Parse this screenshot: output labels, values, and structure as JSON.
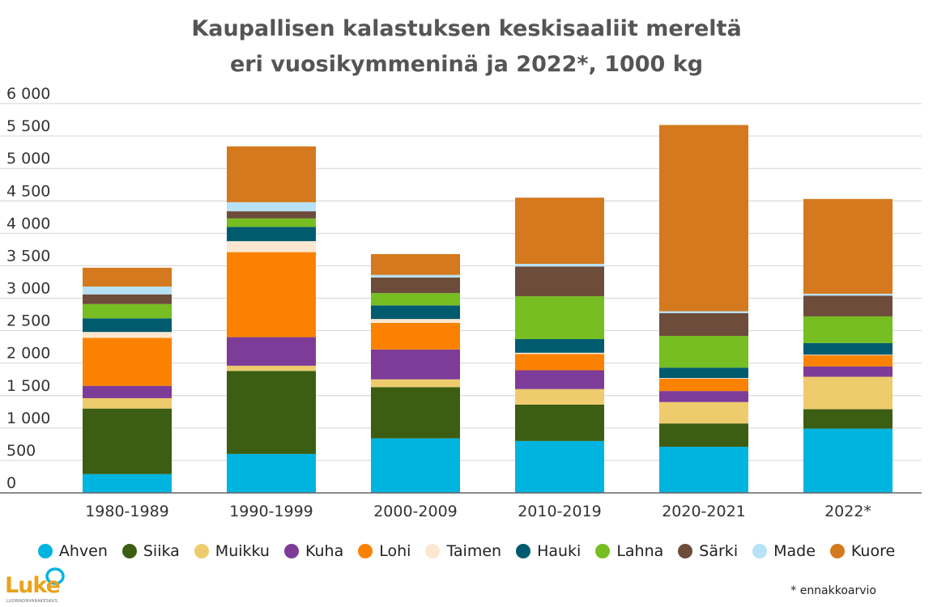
{
  "title": {
    "line1": "Kaupallisen kalastuksen keskisaaliit mereltä",
    "line2": "eri vuosikymmeninä ja 2022*, 1000 kg"
  },
  "footnote": "* ennakkoarvio",
  "logo": {
    "word": "Luke",
    "sub": "LUONNONVARAKESKUS"
  },
  "chart_data": {
    "type": "bar",
    "stacked": true,
    "categories": [
      "1980-1989",
      "1990-1999",
      "2000-2009",
      "2010-2019",
      "2020-2021",
      "2022*"
    ],
    "ylim": [
      0,
      6000
    ],
    "yticks": [
      0,
      500,
      1000,
      1500,
      2000,
      2500,
      3000,
      3500,
      4000,
      4500,
      5000,
      5500,
      6000
    ],
    "ytick_labels": [
      "0",
      "500",
      "1 000",
      "1 500",
      "2 000",
      "2 500",
      "3 000",
      "3 500",
      "4 000",
      "4 500",
      "5 000",
      "5 500",
      "6 000"
    ],
    "grid": true,
    "legend_position": "bottom",
    "series": [
      {
        "name": "Ahven",
        "color": "#00b4e0",
        "values": [
          290,
          600,
          840,
          800,
          710,
          990
        ]
      },
      {
        "name": "Siika",
        "color": "#3b5e13",
        "values": [
          1010,
          1280,
          790,
          560,
          360,
          300
        ]
      },
      {
        "name": "Muikku",
        "color": "#eecb6c",
        "values": [
          160,
          80,
          120,
          240,
          330,
          500
        ]
      },
      {
        "name": "Kuha",
        "color": "#7d3c98",
        "values": [
          190,
          440,
          460,
          290,
          170,
          160
        ]
      },
      {
        "name": "Lohi",
        "color": "#fb8200",
        "values": [
          740,
          1310,
          410,
          250,
          190,
          170
        ]
      },
      {
        "name": "Taimen",
        "color": "#fde7d0",
        "values": [
          90,
          170,
          60,
          20,
          10,
          10
        ]
      },
      {
        "name": "Hauki",
        "color": "#005b6e",
        "values": [
          210,
          220,
          210,
          210,
          160,
          180
        ]
      },
      {
        "name": "Lahna",
        "color": "#76be21",
        "values": [
          220,
          130,
          190,
          660,
          490,
          410
        ]
      },
      {
        "name": "Särki",
        "color": "#6d4c3b",
        "values": [
          150,
          110,
          240,
          460,
          350,
          320
        ]
      },
      {
        "name": "Made",
        "color": "#b7e1f5",
        "values": [
          120,
          140,
          40,
          40,
          30,
          30
        ]
      },
      {
        "name": "Kuore",
        "color": "#d4791d",
        "values": [
          290,
          860,
          320,
          1020,
          2870,
          1460
        ]
      }
    ]
  }
}
